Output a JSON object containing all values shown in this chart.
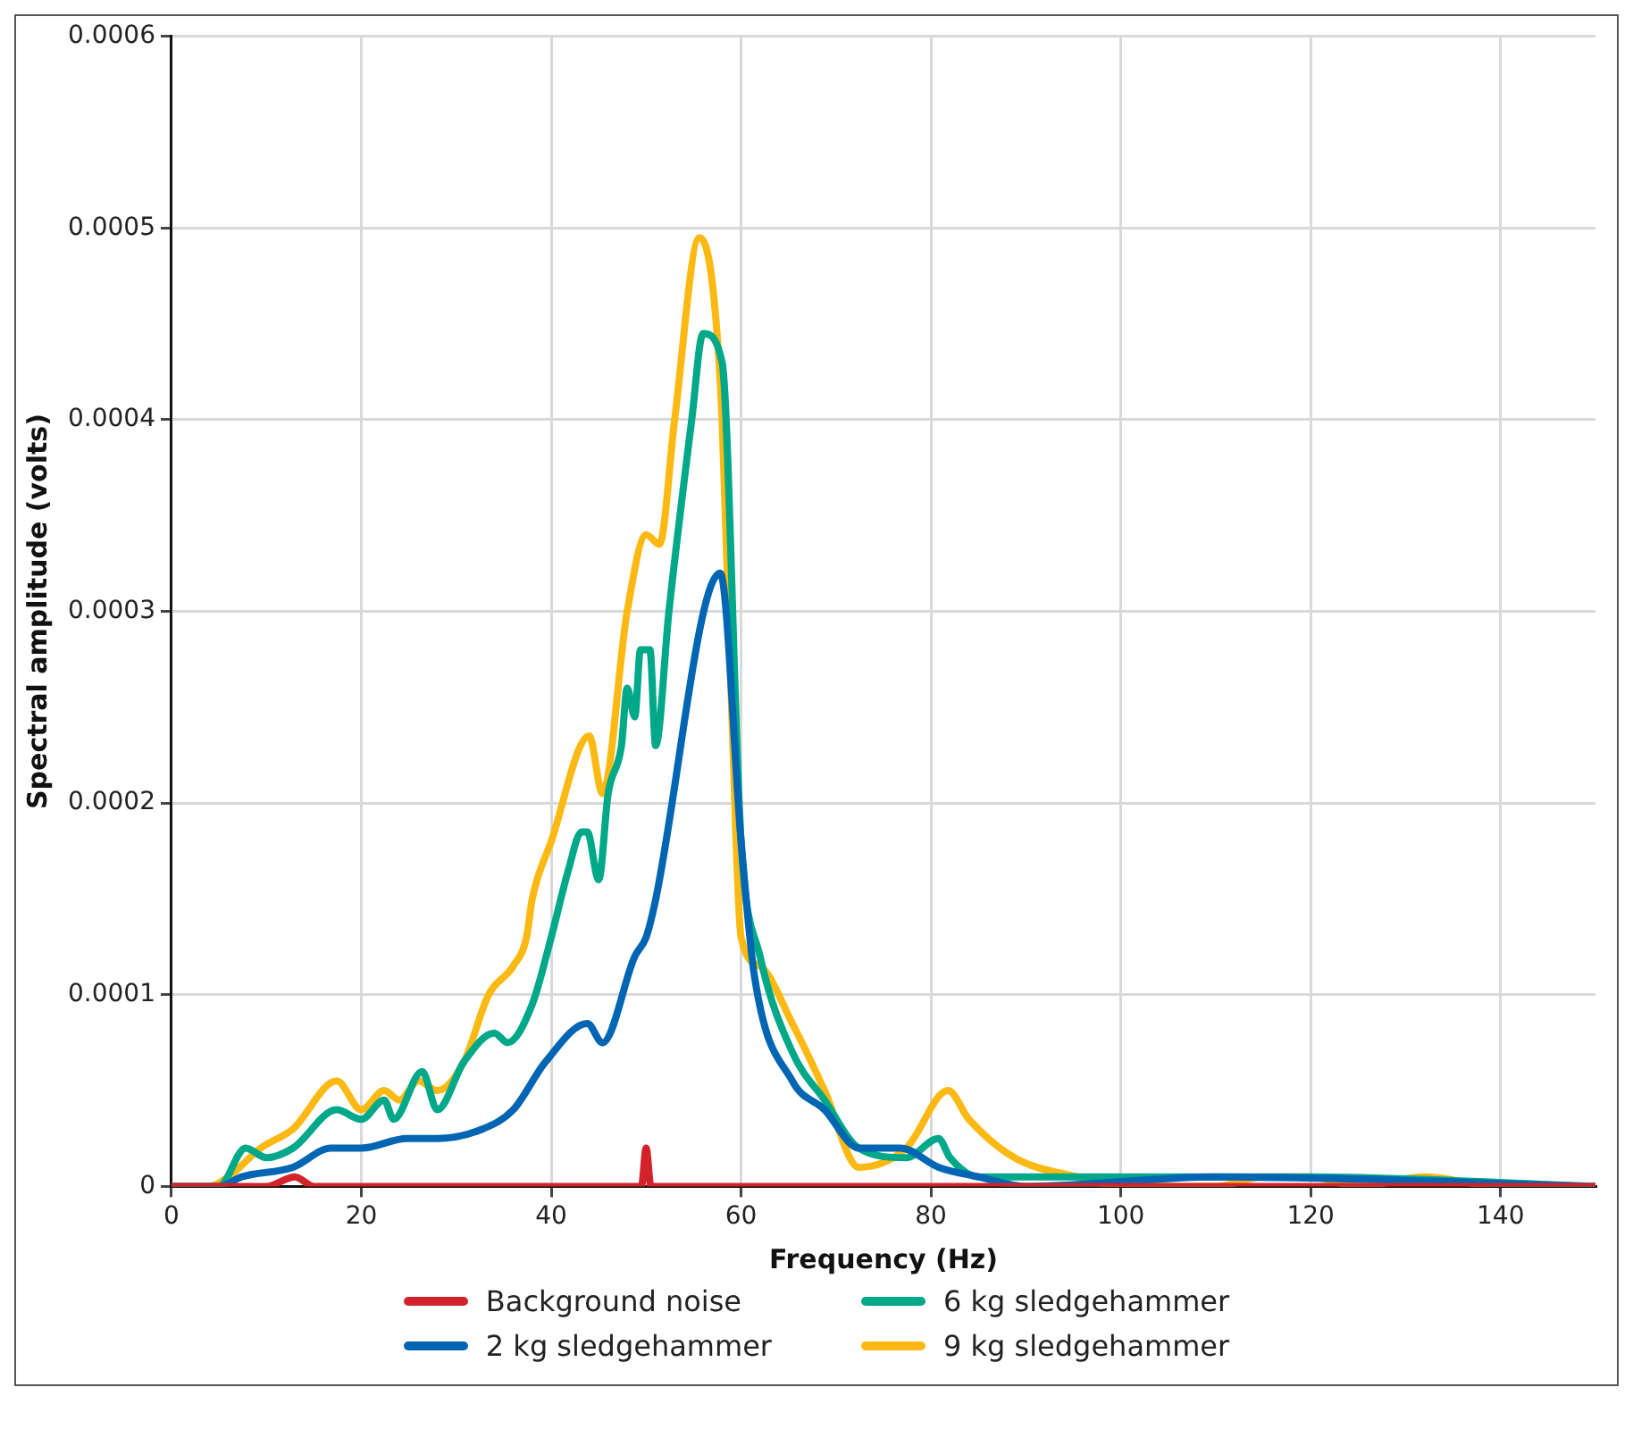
{
  "chart_data": {
    "type": "line",
    "xlabel": "Frequency (Hz)",
    "ylabel": "Spectral amplitude (volts)",
    "xlim": [
      0,
      150
    ],
    "xticks": [
      0,
      20,
      40,
      60,
      80,
      100,
      120,
      140
    ],
    "ylim": [
      0,
      0.0006
    ],
    "yticks": [
      0,
      0.0001,
      0.0002,
      0.0003,
      0.0004,
      0.0005,
      0.0006
    ],
    "grid": true,
    "legend": "bottom",
    "marker": "none",
    "line_style": "solid",
    "series": [
      {
        "name": "Background noise",
        "color": "#d2232a",
        "x": [
          0,
          10,
          13,
          15,
          30,
          49.5,
          50,
          50.5,
          90,
          150
        ],
        "values": [
          0,
          0,
          5e-06,
          0,
          0,
          0,
          2e-05,
          0,
          0,
          0
        ]
      },
      {
        "name": "2 kg sledgehammer",
        "color": "#0065b3",
        "x": [
          0,
          5,
          7.4,
          12.8,
          16.8,
          20,
          24.8,
          28,
          32.8,
          36,
          39.4,
          43.8,
          45.4,
          48.8,
          50,
          50.8,
          57.8,
          60,
          61.4,
          65.4,
          68.8,
          72.4,
          76.8,
          80.8,
          85,
          90,
          110,
          150
        ],
        "values": [
          0,
          0,
          5e-06,
          1e-05,
          2e-05,
          2e-05,
          2.5e-05,
          2.5e-05,
          3e-05,
          4e-05,
          6.5e-05,
          8.5e-05,
          7.5e-05,
          0.00012,
          0.00013,
          0.000145,
          0.00032,
          0.00018,
          0.00011,
          5.5e-05,
          4e-05,
          2e-05,
          2e-05,
          1e-05,
          5e-06,
          0,
          5e-06,
          0
        ]
      },
      {
        "name": "6 kg sledgehammer",
        "color": "#00a88a",
        "x": [
          0,
          5,
          7.8,
          10,
          12.8,
          17.4,
          20,
          22.4,
          23.4,
          26.4,
          28,
          30.8,
          34,
          35.4,
          38,
          40,
          41.8,
          43.2,
          43.8,
          45,
          46,
          47.4,
          48,
          48.8,
          49.4,
          50.4,
          51,
          52.4,
          54.8,
          56,
          58,
          60,
          62,
          65.4,
          68.8,
          72.4,
          77.4,
          80.8,
          82,
          85,
          91.6,
          100,
          110,
          120,
          150
        ],
        "values": [
          0,
          0,
          2e-05,
          1.5e-05,
          2e-05,
          4e-05,
          3.5e-05,
          4.5e-05,
          3.5e-05,
          6e-05,
          4e-05,
          6.5e-05,
          8e-05,
          7.5e-05,
          9.5e-05,
          0.00013,
          0.000165,
          0.000185,
          0.000185,
          0.00016,
          0.000205,
          0.00023,
          0.00026,
          0.000245,
          0.00028,
          0.00028,
          0.00023,
          0.0003,
          0.0004,
          0.000445,
          0.00043,
          0.00018,
          0.00012,
          7e-05,
          4.5e-05,
          2e-05,
          1.5e-05,
          2.5e-05,
          1.5e-05,
          5e-06,
          5e-06,
          5e-06,
          5e-06,
          5e-06,
          0
        ]
      },
      {
        "name": "9 kg sledgehammer",
        "color": "#fdb913",
        "x": [
          0,
          4,
          6,
          9.4,
          12.8,
          17.4,
          20,
          22.4,
          24,
          26,
          28,
          30.8,
          33.4,
          36,
          37.4,
          38,
          40,
          44,
          45.4,
          48,
          50,
          51.4,
          53,
          55.6,
          57,
          58,
          59,
          60,
          62,
          65.4,
          68.8,
          72.4,
          77.4,
          81.8,
          84,
          88.8,
          95.4,
          100,
          110,
          115,
          120,
          125,
          132,
          140,
          150
        ],
        "values": [
          0,
          0,
          5e-06,
          2e-05,
          3e-05,
          5.5e-05,
          4e-05,
          5e-05,
          4.5e-05,
          5.5e-05,
          5e-05,
          6.5e-05,
          0.0001,
          0.000115,
          0.00013,
          0.00015,
          0.00018,
          0.000235,
          0.000205,
          0.0003,
          0.00034,
          0.000335,
          0.0004,
          0.000495,
          0.00047,
          0.0004,
          0.00025,
          0.00013,
          0.000115,
          8.5e-05,
          5e-05,
          1e-05,
          2e-05,
          5e-05,
          3.5e-05,
          1.5e-05,
          5e-06,
          0,
          0,
          5e-06,
          5e-06,
          0,
          5e-06,
          0,
          0
        ]
      }
    ]
  }
}
